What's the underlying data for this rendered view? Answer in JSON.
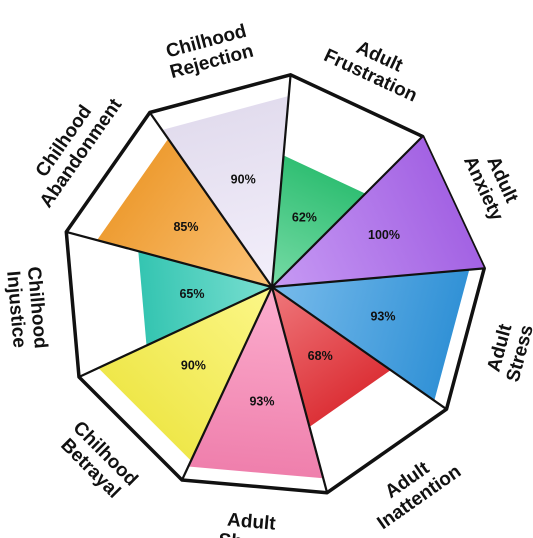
{
  "chart_data": {
    "type": "polar-area",
    "title": "",
    "rmax": 100,
    "categories": [
      {
        "name": [
          "Chilhood",
          "Abandonment"
        ],
        "value": 85,
        "label": "85%",
        "color": "#f9a230"
      },
      {
        "name": [
          "Chilhood",
          "Rejection"
        ],
        "value": 90,
        "label": "90%",
        "color": "#ede6f9"
      },
      {
        "name": [
          "Adult",
          "Frustration"
        ],
        "value": 62,
        "label": "62%",
        "color": "#2ec776"
      },
      {
        "name": [
          "Adult",
          "Anxiety"
        ],
        "value": 100,
        "label": "100%",
        "color": "#a964ee"
      },
      {
        "name": [
          "Adult",
          "Stress"
        ],
        "value": 93,
        "label": "93%",
        "color": "#2f96e0"
      },
      {
        "name": [
          "Adult",
          "Inattention"
        ],
        "value": 68,
        "label": "68%",
        "color": "#e72f36"
      },
      {
        "name": [
          "Adult",
          "Shame"
        ],
        "value": 93,
        "label": "93%",
        "color": "#fb82b3"
      },
      {
        "name": [
          "Chilhood",
          "Betrayal"
        ],
        "value": 90,
        "label": "90%",
        "color": "#fbf24a"
      },
      {
        "name": [
          "Chilhood",
          "Injustice"
        ],
        "value": 65,
        "label": "65%",
        "color": "#33cdb8"
      }
    ]
  }
}
